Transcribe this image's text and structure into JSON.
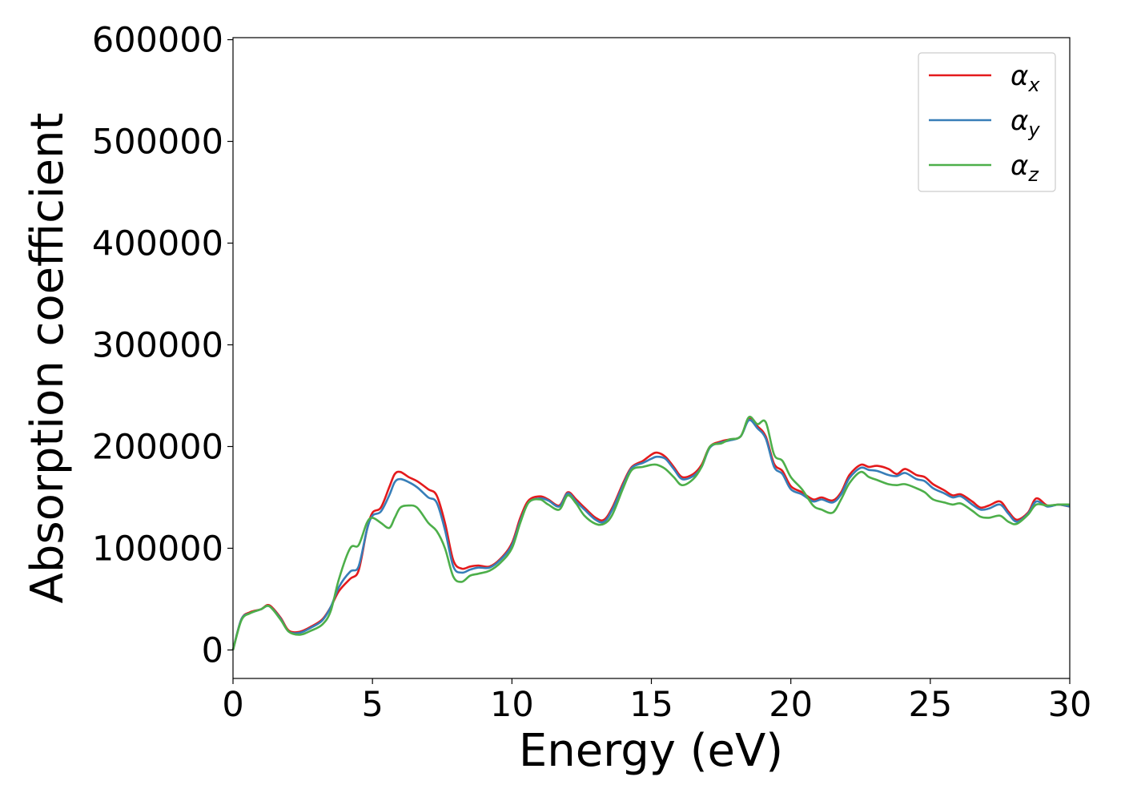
{
  "chart_data": {
    "type": "line",
    "xlabel": "Energy (eV)",
    "ylabel": "Absorption coefficient",
    "xlim": [
      0,
      30
    ],
    "ylim": [
      -28000,
      602000
    ],
    "xticks": [
      0,
      5,
      10,
      15,
      20,
      25,
      30
    ],
    "xtick_labels": [
      "0",
      "5",
      "10",
      "15",
      "20",
      "25",
      "30"
    ],
    "yticks": [
      0,
      100000,
      200000,
      300000,
      400000,
      500000,
      600000
    ],
    "ytick_labels": [
      "0",
      "100000",
      "200000",
      "300000",
      "400000",
      "500000",
      "600000"
    ],
    "grid": false,
    "legend_position": "top-right",
    "series": [
      {
        "name": "α",
        "subscript": "x",
        "color": "#e41a1c",
        "x": [
          0,
          0.3,
          0.6,
          1.0,
          1.3,
          1.7,
          2.0,
          2.4,
          2.8,
          3.2,
          3.5,
          3.8,
          4.2,
          4.5,
          4.8,
          5.0,
          5.3,
          5.6,
          5.8,
          6.0,
          6.3,
          6.6,
          7.0,
          7.3,
          7.6,
          7.9,
          8.2,
          8.5,
          8.8,
          9.2,
          9.6,
          10.0,
          10.3,
          10.6,
          11.0,
          11.3,
          11.7,
          12.0,
          12.3,
          12.6,
          13.0,
          13.3,
          13.6,
          14.0,
          14.3,
          14.7,
          15.0,
          15.2,
          15.5,
          15.8,
          16.1,
          16.5,
          16.8,
          17.1,
          17.5,
          17.8,
          18.2,
          18.5,
          18.8,
          19.1,
          19.4,
          19.7,
          20.0,
          20.4,
          20.8,
          21.1,
          21.5,
          21.8,
          22.1,
          22.5,
          22.8,
          23.1,
          23.5,
          23.8,
          24.1,
          24.5,
          24.8,
          25.1,
          25.5,
          25.8,
          26.1,
          26.5,
          26.8,
          27.1,
          27.5,
          27.8,
          28.1,
          28.5,
          28.8,
          29.2,
          29.6,
          30.0
        ],
        "y": [
          0,
          30000,
          37000,
          40000,
          44000,
          32000,
          19000,
          18000,
          23000,
          30000,
          42000,
          58000,
          70000,
          78000,
          118000,
          135000,
          140000,
          160000,
          173000,
          175000,
          170000,
          166000,
          158000,
          152000,
          125000,
          88000,
          80000,
          82000,
          83000,
          82000,
          90000,
          105000,
          130000,
          147000,
          151000,
          148000,
          142000,
          155000,
          148000,
          140000,
          130000,
          128000,
          140000,
          165000,
          180000,
          186000,
          192000,
          194000,
          190000,
          180000,
          170000,
          173000,
          182000,
          200000,
          205000,
          207000,
          210000,
          228000,
          220000,
          210000,
          183000,
          176000,
          161000,
          155000,
          148000,
          150000,
          147000,
          155000,
          172000,
          182000,
          180000,
          181000,
          178000,
          173000,
          178000,
          172000,
          170000,
          163000,
          157000,
          152000,
          153000,
          146000,
          140000,
          142000,
          146000,
          136000,
          128000,
          135000,
          149000,
          142000,
          143000,
          141000
        ]
      },
      {
        "name": "α",
        "subscript": "y",
        "color": "#377eb8",
        "x": [
          0,
          0.3,
          0.6,
          1.0,
          1.3,
          1.7,
          2.0,
          2.4,
          2.8,
          3.2,
          3.5,
          3.8,
          4.2,
          4.5,
          4.8,
          5.0,
          5.3,
          5.6,
          5.8,
          6.0,
          6.3,
          6.6,
          7.0,
          7.3,
          7.6,
          7.9,
          8.2,
          8.5,
          8.8,
          9.2,
          9.6,
          10.0,
          10.3,
          10.6,
          11.0,
          11.3,
          11.7,
          12.0,
          12.3,
          12.6,
          13.0,
          13.3,
          13.6,
          14.0,
          14.3,
          14.7,
          15.0,
          15.2,
          15.5,
          15.8,
          16.1,
          16.5,
          16.8,
          17.1,
          17.5,
          17.8,
          18.2,
          18.5,
          18.8,
          19.1,
          19.4,
          19.7,
          20.0,
          20.4,
          20.8,
          21.1,
          21.5,
          21.8,
          22.1,
          22.5,
          22.8,
          23.1,
          23.5,
          23.8,
          24.1,
          24.5,
          24.8,
          25.1,
          25.5,
          25.8,
          26.1,
          26.5,
          26.8,
          27.1,
          27.5,
          27.8,
          28.1,
          28.5,
          28.8,
          29.2,
          29.6,
          30.0
        ],
        "y": [
          0,
          30000,
          36000,
          40000,
          43000,
          31000,
          18000,
          17000,
          22000,
          29000,
          42000,
          62000,
          77000,
          82000,
          118000,
          132000,
          136000,
          152000,
          165000,
          168000,
          165000,
          160000,
          150000,
          145000,
          118000,
          82000,
          76000,
          79000,
          81000,
          81000,
          89000,
          103000,
          127000,
          145000,
          149000,
          147000,
          141000,
          154000,
          146000,
          138000,
          128000,
          126000,
          138000,
          163000,
          179000,
          184000,
          188000,
          190000,
          188000,
          178000,
          168000,
          171000,
          180000,
          199000,
          204000,
          206000,
          210000,
          226000,
          218000,
          208000,
          180000,
          173000,
          158000,
          153000,
          146000,
          148000,
          145000,
          153000,
          169000,
          179000,
          177000,
          176000,
          172000,
          171000,
          174000,
          168000,
          166000,
          159000,
          154000,
          150000,
          151000,
          143000,
          138000,
          139000,
          143000,
          134000,
          126000,
          134000,
          146000,
          141000,
          143000,
          141000
        ]
      },
      {
        "name": "α",
        "subscript": "z",
        "color": "#4daf4a",
        "x": [
          0,
          0.3,
          0.6,
          1.0,
          1.3,
          1.7,
          2.0,
          2.4,
          2.8,
          3.2,
          3.5,
          3.8,
          4.2,
          4.5,
          4.8,
          5.0,
          5.3,
          5.6,
          5.8,
          6.0,
          6.3,
          6.6,
          7.0,
          7.3,
          7.6,
          7.9,
          8.2,
          8.5,
          8.8,
          9.2,
          9.6,
          10.0,
          10.3,
          10.6,
          11.0,
          11.3,
          11.7,
          12.0,
          12.3,
          12.6,
          13.0,
          13.3,
          13.6,
          14.0,
          14.3,
          14.7,
          15.0,
          15.2,
          15.5,
          15.8,
          16.1,
          16.5,
          16.8,
          17.1,
          17.5,
          17.8,
          18.2,
          18.5,
          18.8,
          19.1,
          19.4,
          19.7,
          20.0,
          20.4,
          20.8,
          21.1,
          21.5,
          21.8,
          22.1,
          22.5,
          22.8,
          23.1,
          23.5,
          23.8,
          24.1,
          24.5,
          24.8,
          25.1,
          25.5,
          25.8,
          26.1,
          26.5,
          26.8,
          27.1,
          27.5,
          27.8,
          28.1,
          28.5,
          28.8,
          29.2,
          29.6,
          30.0
        ],
        "y": [
          0,
          29000,
          36000,
          40000,
          43000,
          30000,
          18000,
          15000,
          19000,
          25000,
          38000,
          70000,
          100000,
          103000,
          125000,
          130000,
          125000,
          120000,
          130000,
          140000,
          142000,
          140000,
          125000,
          117000,
          100000,
          72000,
          67000,
          73000,
          75000,
          78000,
          86000,
          100000,
          125000,
          145000,
          148000,
          143000,
          138000,
          152000,
          144000,
          132000,
          124000,
          124000,
          133000,
          160000,
          177000,
          180000,
          182000,
          182000,
          178000,
          170000,
          162000,
          168000,
          180000,
          200000,
          203000,
          207000,
          210000,
          229000,
          222000,
          224000,
          192000,
          186000,
          170000,
          158000,
          142000,
          138000,
          135000,
          148000,
          164000,
          175000,
          170000,
          167000,
          163000,
          162000,
          163000,
          159000,
          155000,
          148000,
          145000,
          143000,
          144000,
          137000,
          131000,
          130000,
          132000,
          126000,
          124000,
          133000,
          143000,
          142000,
          143000,
          143000
        ]
      }
    ]
  }
}
